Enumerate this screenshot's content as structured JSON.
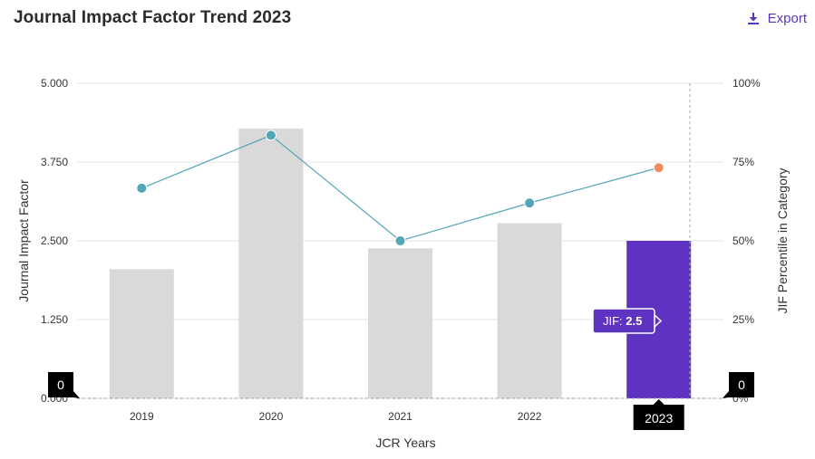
{
  "header": {
    "title": "Journal Impact Factor Trend 2023",
    "export_label": "Export"
  },
  "colors": {
    "bar_default": "#d9d9d9",
    "bar_highlight": "#5f33c2",
    "line": "#52a6b5",
    "marker_highlight": "#f08c5f",
    "tooltip_bg": "#5f33c2",
    "accent": "#5c33c1"
  },
  "chart_data": {
    "type": "bar",
    "title": "Journal Impact Factor Trend 2023",
    "xlabel": "JCR Years",
    "ylabel": "Journal Impact Factor",
    "y2label": "JIF Percentile in Category",
    "categories": [
      "2019",
      "2020",
      "2021",
      "2022",
      "2023"
    ],
    "ylim": [
      0,
      5
    ],
    "y_ticks": [
      "0.000",
      "1.250",
      "2.500",
      "3.750",
      "5.000"
    ],
    "y2lim": [
      0,
      100
    ],
    "y2_ticks": [
      "0%",
      "25%",
      "50%",
      "75%",
      "100%"
    ],
    "series": [
      {
        "name": "Journal Impact Factor",
        "type": "bar",
        "axis": "left",
        "values": [
          2.05,
          4.28,
          2.38,
          2.78,
          2.5
        ]
      },
      {
        "name": "JIF Percentile in Category",
        "type": "line",
        "axis": "right",
        "values": [
          66.7,
          83.5,
          50.0,
          62.0,
          73.2
        ]
      }
    ],
    "highlight_index": 4,
    "grid": true,
    "tooltip": {
      "label": "JIF: ",
      "value": "2.5"
    },
    "crosshair": {
      "x_label": "2023",
      "y_left_label": "0",
      "y_right_label": "0"
    }
  }
}
